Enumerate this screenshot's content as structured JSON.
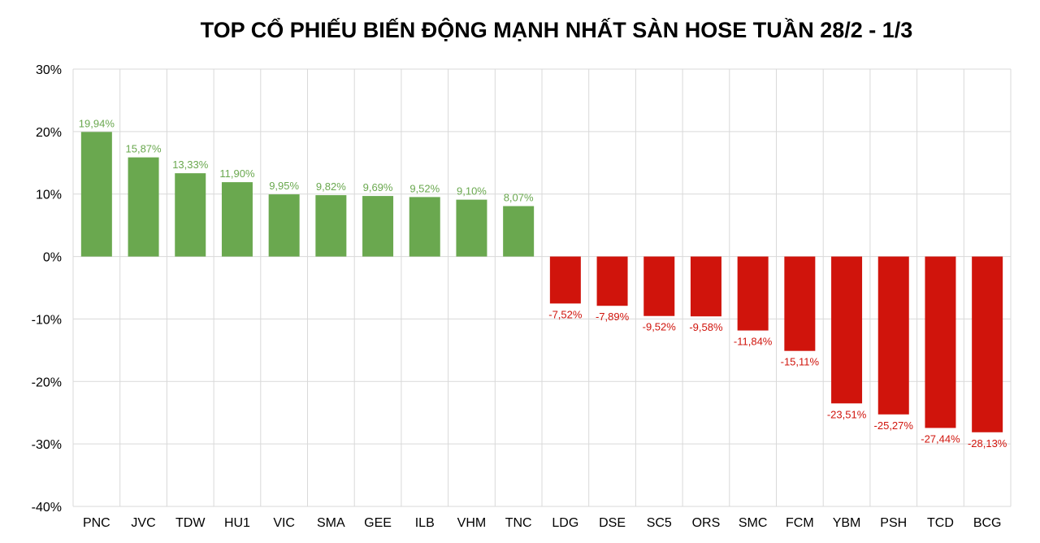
{
  "chart_data": {
    "type": "bar",
    "title": "TOP CỔ PHIẾU BIẾN ĐỘNG MẠNH NHẤT SÀN HOSE TUẦN 28/2 - 1/3",
    "xlabel": "",
    "ylabel": "",
    "ylim": [
      -40,
      30
    ],
    "yticks": [
      30,
      20,
      10,
      0,
      -10,
      -20,
      -30,
      -40
    ],
    "ytick_labels": [
      "30%",
      "20%",
      "10%",
      "0%",
      "-10%",
      "-20%",
      "-30%",
      "-40%"
    ],
    "grid": true,
    "legend": "none",
    "categories": [
      "PNC",
      "JVC",
      "TDW",
      "HU1",
      "VIC",
      "SMA",
      "GEE",
      "ILB",
      "VHM",
      "TNC",
      "LDG",
      "DSE",
      "SC5",
      "ORS",
      "SMC",
      "FCM",
      "YBM",
      "PSH",
      "TCD",
      "BCG"
    ],
    "values": [
      19.94,
      15.87,
      13.33,
      11.9,
      9.95,
      9.82,
      9.69,
      9.52,
      9.1,
      8.07,
      -7.52,
      -7.89,
      -9.52,
      -9.58,
      -11.84,
      -15.11,
      -23.51,
      -25.27,
      -27.44,
      -28.13
    ],
    "data_labels": [
      "19,94%",
      "15,87%",
      "13,33%",
      "11,90%",
      "9,95%",
      "9,82%",
      "9,69%",
      "9,52%",
      "9,10%",
      "8,07%",
      "-7,52%",
      "-7,89%",
      "-9,52%",
      "-9,58%",
      "-11,84%",
      "-15,11%",
      "-23,51%",
      "-25,27%",
      "-27,44%",
      "-28,13%"
    ],
    "colors": {
      "positive": "#6aa84f",
      "negative": "#d0140c",
      "positive_label": "#6aa84f",
      "negative_label": "#d0140c",
      "grid": "#d9d9d9"
    }
  }
}
